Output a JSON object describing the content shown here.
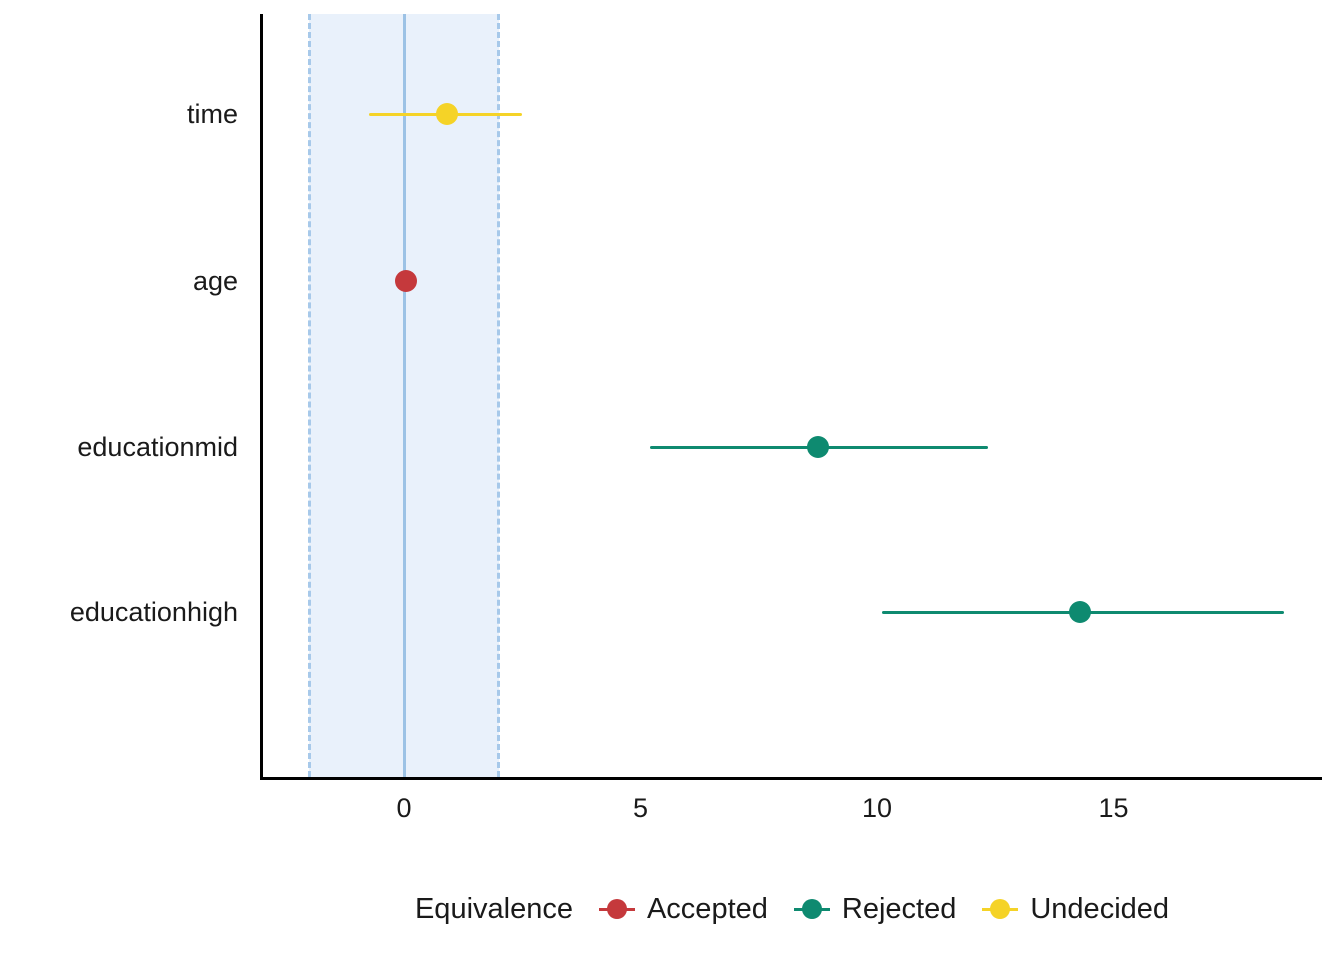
{
  "chart_data": {
    "type": "scatter",
    "title": "",
    "xlabel": "",
    "ylabel": "",
    "xlim": [
      -3,
      19.4
    ],
    "x_ticks": [
      0,
      5,
      10,
      15
    ],
    "x_tick_labels": [
      "0",
      "5",
      "10",
      "15"
    ],
    "categories": [
      "time",
      "age",
      "educationmid",
      "educationhigh"
    ],
    "equivalence_band": {
      "lower": -2,
      "upper": 2,
      "center": 0,
      "fill_color": "#e9f1fb",
      "edge_color": "#a7c9ea",
      "center_line_color": "#9cc2e5"
    },
    "points": [
      {
        "label": "time",
        "estimate": 0.9,
        "ci_low": -0.75,
        "ci_high": 2.5,
        "status": "Undecided"
      },
      {
        "label": "age",
        "estimate": 0.05,
        "ci_low": -0.1,
        "ci_high": 0.2,
        "status": "Accepted"
      },
      {
        "label": "educationmid",
        "estimate": 8.75,
        "ci_low": 5.2,
        "ci_high": 12.35,
        "status": "Rejected"
      },
      {
        "label": "educationhigh",
        "estimate": 14.3,
        "ci_low": 10.1,
        "ci_high": 18.6,
        "status": "Rejected"
      }
    ],
    "legend": {
      "title": "Equivalence",
      "position": "bottom",
      "entries": [
        {
          "label": "Accepted",
          "color": "#c5393c"
        },
        {
          "label": "Rejected",
          "color": "#0e8a70"
        },
        {
          "label": "Undecided",
          "color": "#f5d327"
        }
      ]
    },
    "grid": "off",
    "axis_color": "#000000",
    "text_color": "#1a1a1a"
  }
}
